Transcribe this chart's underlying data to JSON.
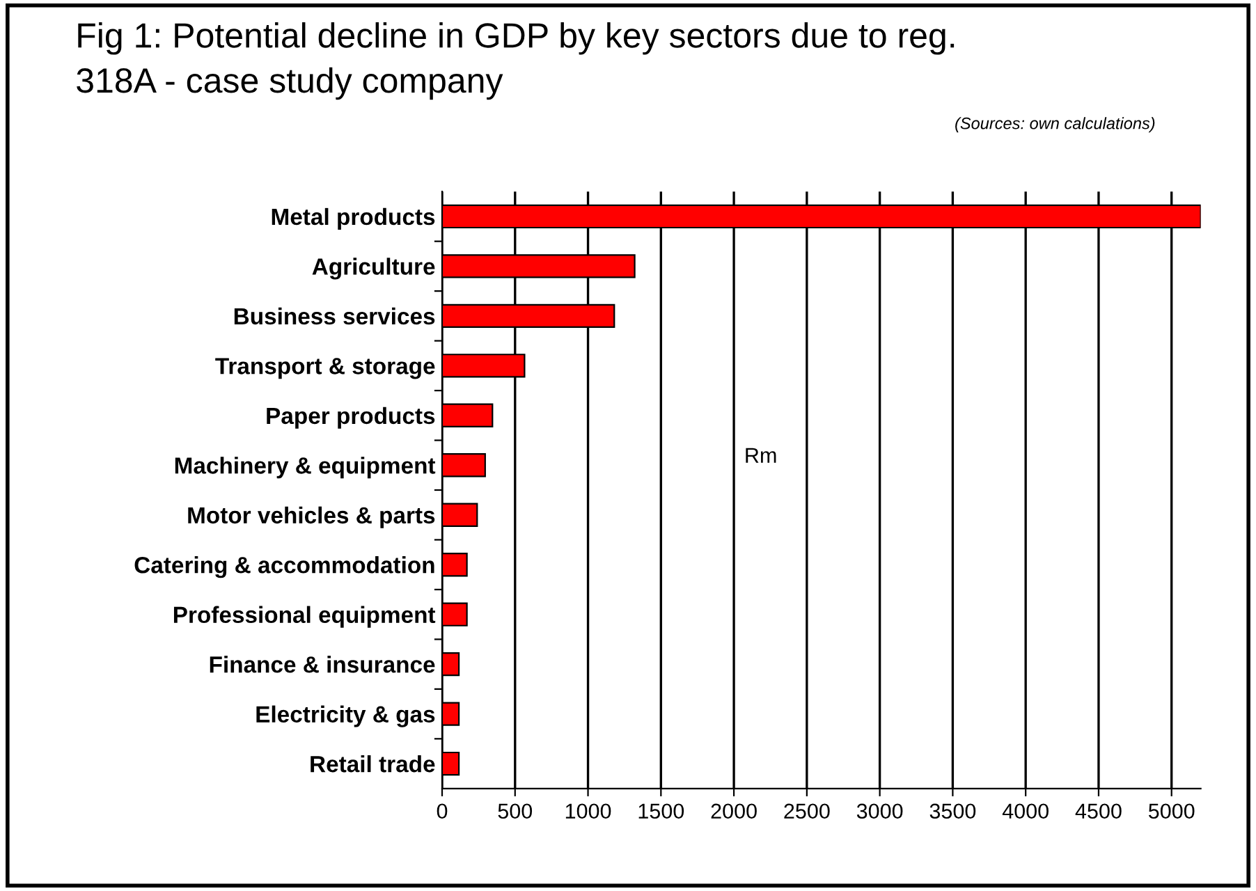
{
  "chart_data": {
    "type": "bar",
    "orientation": "horizontal",
    "title": "Fig 1: Potential decline in GDP by key sectors due to reg.\n318A - case study company",
    "subtitle": "(Sources: own calculations)",
    "categories": [
      "Metal products",
      "Agriculture",
      "Business services",
      "Transport & storage",
      "Paper products",
      "Machinery & equipment",
      "Motor vehicles & parts",
      "Catering & accommodation",
      "Professional equipment",
      "Finance & insurance",
      "Electricity & gas",
      "Retail trade"
    ],
    "values": [
      5200,
      1320,
      1180,
      565,
      345,
      295,
      240,
      170,
      170,
      115,
      115,
      115
    ],
    "color": "#ff0000",
    "xlim": [
      0,
      5200
    ],
    "xticks": [
      0,
      500,
      1000,
      1500,
      2000,
      2500,
      3000,
      3500,
      4000,
      4500,
      5000
    ],
    "grid": "x",
    "annotations": [
      "Rm"
    ]
  }
}
